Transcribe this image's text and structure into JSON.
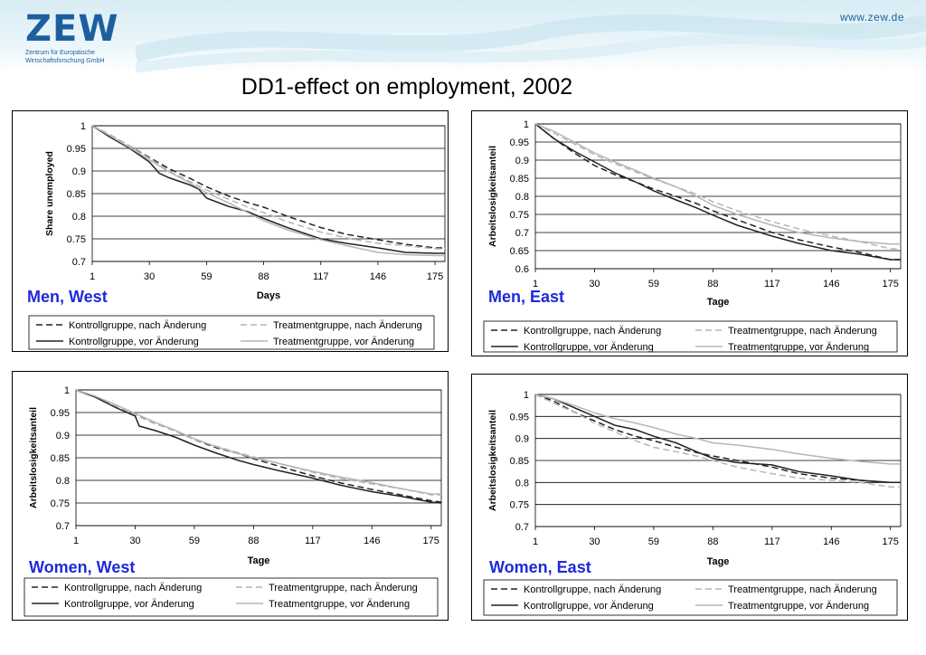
{
  "header": {
    "logo": "ZEW",
    "logo_subtitle_1": "Zentrum für Europäische",
    "logo_subtitle_2": "Wirtschaftsforschung GmbH",
    "url": "www.zew.de"
  },
  "title": "DD1-effect on employment, 2002",
  "colors": {
    "accent": "#1d5f9e",
    "region_label": "#1e2ad8",
    "kontroll": "#222222",
    "treatment": "#aaaaaa"
  },
  "chart_data": [
    {
      "type": "line",
      "region": "Men, West",
      "title": "",
      "xlabel": "Days",
      "ylabel": "Share unemployed",
      "xlim": [
        1,
        180
      ],
      "ylim": [
        0.7,
        1.0
      ],
      "xticks": [
        "1",
        "30",
        "59",
        "88",
        "117",
        "146",
        "175"
      ],
      "yticks": [
        "0.7",
        "0.75",
        "0.8",
        "0.85",
        "0.9",
        "0.95",
        "1"
      ],
      "grid": true,
      "legend": "bottom",
      "series": [
        {
          "name": "Kontrollgruppe, nach Änderung",
          "style": "dash-dark",
          "x": [
            1,
            10,
            20,
            30,
            40,
            50,
            59,
            70,
            80,
            88,
            100,
            117,
            130,
            146,
            160,
            175,
            180
          ],
          "y": [
            1,
            0.98,
            0.955,
            0.93,
            0.905,
            0.885,
            0.865,
            0.845,
            0.83,
            0.82,
            0.8,
            0.775,
            0.76,
            0.748,
            0.738,
            0.73,
            0.73
          ]
        },
        {
          "name": "Treatmentgruppe, nach Änderung",
          "style": "dash-light",
          "x": [
            1,
            10,
            20,
            30,
            40,
            50,
            59,
            70,
            80,
            88,
            100,
            117,
            130,
            146,
            160,
            175,
            180
          ],
          "y": [
            1,
            0.98,
            0.955,
            0.928,
            0.9,
            0.878,
            0.858,
            0.838,
            0.82,
            0.808,
            0.788,
            0.765,
            0.752,
            0.74,
            0.735,
            0.728,
            0.728
          ]
        },
        {
          "name": "Kontrollgruppe, vor Änderung",
          "style": "solid-dark",
          "x": [
            1,
            10,
            20,
            30,
            35,
            40,
            50,
            55,
            59,
            70,
            80,
            88,
            100,
            117,
            130,
            146,
            160,
            175,
            180
          ],
          "y": [
            1,
            0.975,
            0.95,
            0.92,
            0.895,
            0.885,
            0.87,
            0.86,
            0.84,
            0.822,
            0.81,
            0.795,
            0.775,
            0.75,
            0.74,
            0.73,
            0.72,
            0.718,
            0.718
          ]
        },
        {
          "name": "Treatmentgruppe, vor Änderung",
          "style": "solid-light",
          "x": [
            1,
            10,
            20,
            30,
            40,
            50,
            59,
            70,
            80,
            88,
            100,
            117,
            130,
            146,
            160,
            175,
            180
          ],
          "y": [
            1,
            0.978,
            0.952,
            0.925,
            0.898,
            0.875,
            0.852,
            0.83,
            0.808,
            0.79,
            0.77,
            0.748,
            0.735,
            0.72,
            0.715,
            0.713,
            0.713
          ]
        }
      ]
    },
    {
      "type": "line",
      "region": "Men, East",
      "title": "",
      "xlabel": "Tage",
      "ylabel": "Arbeitslosigkeitsanteil",
      "xlim": [
        1,
        180
      ],
      "ylim": [
        0.6,
        1.0
      ],
      "xticks": [
        "1",
        "30",
        "59",
        "88",
        "117",
        "146",
        "175"
      ],
      "yticks": [
        "0.6",
        "0.65",
        "0.7",
        "0.75",
        "0.8",
        "0.85",
        "0.9",
        "0.95",
        "1"
      ],
      "grid": true,
      "legend": "bottom",
      "series": [
        {
          "name": "Kontrollgruppe, nach Änderung",
          "style": "dash-dark",
          "x": [
            1,
            10,
            20,
            30,
            40,
            50,
            59,
            70,
            80,
            88,
            100,
            117,
            130,
            146,
            160,
            175,
            180
          ],
          "y": [
            1,
            0.96,
            0.92,
            0.885,
            0.86,
            0.84,
            0.82,
            0.8,
            0.78,
            0.76,
            0.735,
            0.7,
            0.68,
            0.66,
            0.645,
            0.625,
            0.625
          ]
        },
        {
          "name": "Treatmentgruppe, nach Änderung",
          "style": "dash-light",
          "x": [
            1,
            10,
            20,
            30,
            40,
            50,
            59,
            70,
            80,
            88,
            100,
            117,
            130,
            146,
            160,
            175,
            180
          ],
          "y": [
            1,
            0.975,
            0.945,
            0.915,
            0.89,
            0.868,
            0.848,
            0.826,
            0.806,
            0.785,
            0.76,
            0.73,
            0.71,
            0.69,
            0.675,
            0.655,
            0.655
          ]
        },
        {
          "name": "Kontrollgruppe, vor Änderung",
          "style": "solid-dark",
          "x": [
            1,
            10,
            20,
            30,
            40,
            50,
            59,
            70,
            80,
            88,
            100,
            117,
            130,
            146,
            160,
            175,
            180
          ],
          "y": [
            1,
            0.96,
            0.925,
            0.895,
            0.865,
            0.84,
            0.815,
            0.79,
            0.768,
            0.748,
            0.72,
            0.69,
            0.67,
            0.65,
            0.64,
            0.625,
            0.625
          ]
        },
        {
          "name": "Treatmentgruppe, vor Änderung",
          "style": "solid-light",
          "x": [
            1,
            10,
            20,
            30,
            40,
            50,
            59,
            70,
            80,
            88,
            100,
            117,
            130,
            146,
            160,
            175,
            180
          ],
          "y": [
            1,
            0.98,
            0.95,
            0.92,
            0.895,
            0.872,
            0.85,
            0.826,
            0.8,
            0.775,
            0.75,
            0.72,
            0.7,
            0.685,
            0.675,
            0.668,
            0.668
          ]
        }
      ]
    },
    {
      "type": "line",
      "region": "Women, West",
      "title": "",
      "xlabel": "Tage",
      "ylabel": "Arbeitslosigkeitsanteil",
      "xlim": [
        1,
        180
      ],
      "ylim": [
        0.7,
        1.0
      ],
      "xticks": [
        "1",
        "30",
        "59",
        "88",
        "117",
        "146",
        "175"
      ],
      "yticks": [
        "0.7",
        "0.75",
        "0.8",
        "0.85",
        "0.9",
        "0.95",
        "1"
      ],
      "grid": true,
      "legend": "bottom",
      "series": [
        {
          "name": "Kontrollgruppe, nach Änderung",
          "style": "dash-dark",
          "x": [
            1,
            10,
            20,
            30,
            40,
            50,
            59,
            70,
            80,
            88,
            100,
            117,
            130,
            146,
            160,
            175,
            180
          ],
          "y": [
            1,
            0.985,
            0.965,
            0.945,
            0.925,
            0.91,
            0.89,
            0.872,
            0.86,
            0.848,
            0.832,
            0.81,
            0.795,
            0.78,
            0.768,
            0.755,
            0.752
          ]
        },
        {
          "name": "Treatmentgruppe, nach Änderung",
          "style": "dash-light",
          "x": [
            1,
            10,
            20,
            30,
            40,
            50,
            59,
            70,
            80,
            88,
            100,
            117,
            130,
            146,
            160,
            175,
            180
          ],
          "y": [
            1,
            0.985,
            0.965,
            0.945,
            0.925,
            0.908,
            0.89,
            0.875,
            0.862,
            0.852,
            0.838,
            0.818,
            0.805,
            0.792,
            0.782,
            0.768,
            0.768
          ]
        },
        {
          "name": "Kontrollgruppe, vor Änderung",
          "style": "solid-dark",
          "x": [
            1,
            10,
            20,
            30,
            32,
            40,
            50,
            59,
            70,
            80,
            88,
            100,
            117,
            130,
            146,
            160,
            175,
            180
          ],
          "y": [
            1,
            0.985,
            0.962,
            0.942,
            0.92,
            0.91,
            0.895,
            0.878,
            0.86,
            0.845,
            0.835,
            0.822,
            0.805,
            0.79,
            0.775,
            0.765,
            0.752,
            0.75
          ]
        },
        {
          "name": "Treatmentgruppe, vor Änderung",
          "style": "solid-light",
          "x": [
            1,
            10,
            20,
            30,
            40,
            50,
            59,
            70,
            80,
            88,
            100,
            117,
            130,
            146,
            160,
            175,
            180
          ],
          "y": [
            1,
            0.987,
            0.968,
            0.948,
            0.928,
            0.91,
            0.892,
            0.874,
            0.86,
            0.85,
            0.838,
            0.82,
            0.808,
            0.795,
            0.782,
            0.77,
            0.77
          ]
        }
      ]
    },
    {
      "type": "line",
      "region": "Women, East",
      "title": "",
      "xlabel": "Tage",
      "ylabel": "Arbeitslosigkeitsanteil",
      "xlim": [
        1,
        180
      ],
      "ylim": [
        0.7,
        1.0
      ],
      "xticks": [
        "1",
        "30",
        "59",
        "88",
        "117",
        "146",
        "175"
      ],
      "yticks": [
        "0.7",
        "0.75",
        "0.8",
        "0.85",
        "0.9",
        "0.95",
        "1"
      ],
      "grid": true,
      "legend": "bottom",
      "series": [
        {
          "name": "Kontrollgruppe, nach Änderung",
          "style": "dash-dark",
          "x": [
            1,
            10,
            20,
            30,
            40,
            50,
            59,
            70,
            80,
            88,
            100,
            117,
            130,
            146,
            160,
            175,
            180
          ],
          "y": [
            1,
            0.985,
            0.96,
            0.94,
            0.92,
            0.905,
            0.895,
            0.88,
            0.868,
            0.86,
            0.85,
            0.835,
            0.82,
            0.81,
            0.805,
            0.8,
            0.8
          ]
        },
        {
          "name": "Treatmentgruppe, nach Änderung",
          "style": "dash-light",
          "x": [
            1,
            10,
            20,
            30,
            40,
            50,
            59,
            70,
            80,
            88,
            100,
            117,
            130,
            146,
            160,
            175,
            180
          ],
          "y": [
            1,
            0.98,
            0.96,
            0.935,
            0.915,
            0.895,
            0.88,
            0.87,
            0.86,
            0.85,
            0.835,
            0.82,
            0.81,
            0.805,
            0.8,
            0.79,
            0.79
          ]
        },
        {
          "name": "Kontrollgruppe, vor Änderung",
          "style": "solid-dark",
          "x": [
            1,
            10,
            20,
            30,
            35,
            40,
            50,
            59,
            70,
            80,
            88,
            100,
            117,
            130,
            146,
            160,
            175,
            180
          ],
          "y": [
            1,
            0.99,
            0.97,
            0.95,
            0.94,
            0.93,
            0.92,
            0.905,
            0.89,
            0.87,
            0.855,
            0.845,
            0.84,
            0.825,
            0.815,
            0.805,
            0.8,
            0.8
          ]
        },
        {
          "name": "Treatmentgruppe, vor Änderung",
          "style": "solid-light",
          "x": [
            1,
            10,
            20,
            30,
            40,
            50,
            59,
            70,
            80,
            88,
            100,
            117,
            130,
            146,
            160,
            175,
            180
          ],
          "y": [
            1,
            0.99,
            0.975,
            0.958,
            0.945,
            0.935,
            0.925,
            0.91,
            0.9,
            0.89,
            0.885,
            0.875,
            0.865,
            0.855,
            0.848,
            0.842,
            0.842
          ]
        }
      ]
    }
  ]
}
